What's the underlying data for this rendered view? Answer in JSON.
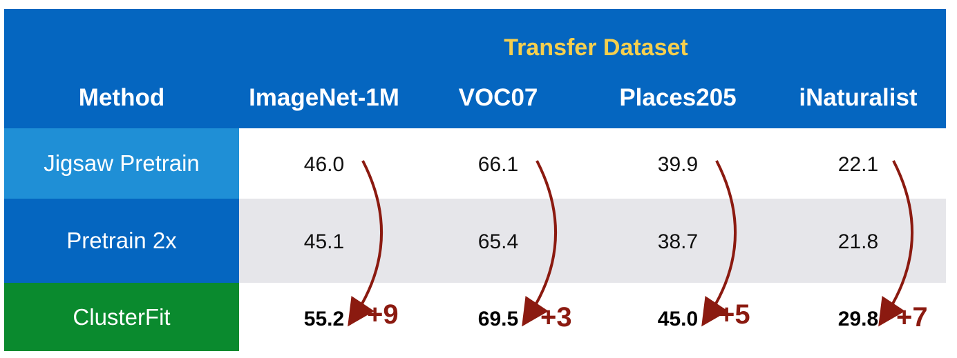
{
  "table": {
    "super_header": "Transfer Dataset",
    "method_header": "Method",
    "columns": [
      "ImageNet-1M",
      "VOC07",
      "Places205",
      "iNaturalist"
    ],
    "rows": [
      {
        "method": "Jigsaw Pretrain",
        "values": [
          "46.0",
          "66.1",
          "39.9",
          "22.1"
        ],
        "bold": false,
        "label_color": "#1f8fd6",
        "row_color": "#ffffff"
      },
      {
        "method": "Pretrain 2x",
        "values": [
          "45.1",
          "65.4",
          "38.7",
          "21.8"
        ],
        "bold": false,
        "label_color": "#0566c0",
        "row_color": "#e6e6ea"
      },
      {
        "method": "ClusterFit",
        "values": [
          "55.2",
          "69.5",
          "45.0",
          "29.8"
        ],
        "bold": true,
        "label_color": "#0a8a2e",
        "row_color": "#ffffff"
      }
    ],
    "improvements": [
      "+9",
      "+3",
      "+5",
      "+7"
    ]
  },
  "chart_data": {
    "type": "table",
    "title": "Transfer Dataset",
    "columns": [
      "Method",
      "ImageNet-1M",
      "VOC07",
      "Places205",
      "iNaturalist"
    ],
    "rows": [
      [
        "Jigsaw Pretrain",
        46.0,
        66.1,
        39.9,
        22.1
      ],
      [
        "Pretrain 2x",
        45.1,
        65.4,
        38.7,
        21.8
      ],
      [
        "ClusterFit",
        55.2,
        69.5,
        45.0,
        29.8
      ]
    ],
    "annotations": [
      "+9",
      "+3",
      "+5",
      "+7"
    ]
  },
  "colors": {
    "header_blue": "#0566c0",
    "super_header_yellow": "#f5cf4e",
    "arrow_red": "#8b1a10",
    "light_row": "#e6e6ea"
  }
}
